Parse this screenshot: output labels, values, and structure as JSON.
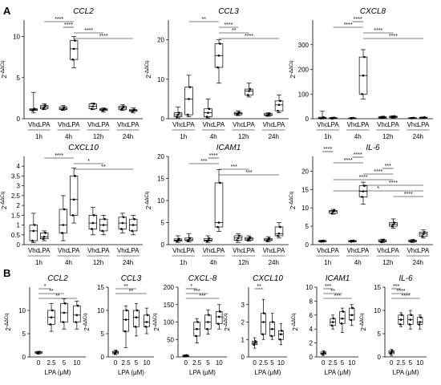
{
  "panels": [
    {
      "label": "A"
    },
    {
      "label": "B"
    }
  ],
  "y_label": {
    "base": "2",
    "sup": "-ΔΔCq"
  },
  "chart_data": [
    {
      "type": "box",
      "panel": "A",
      "title": "CCL2",
      "ylim": [
        0,
        12
      ],
      "yticks": [
        0,
        5,
        10
      ],
      "groups": [
        "Vhc",
        "LPA",
        "Vhc",
        "LPA",
        "Vhc",
        "LPA",
        "Vhc",
        "LPA"
      ],
      "time_labels": [
        "1h",
        "4h",
        "12h",
        "24h"
      ],
      "boxes": [
        {
          "q1": 1.0,
          "med": 1.1,
          "q3": 1.2,
          "min": 0.7,
          "max": 3.2
        },
        {
          "q1": 1.2,
          "med": 1.4,
          "q3": 1.6,
          "min": 1.1,
          "max": 1.8
        },
        {
          "q1": 1.1,
          "med": 1.2,
          "q3": 1.4,
          "min": 1.0,
          "max": 1.6
        },
        {
          "q1": 7.2,
          "med": 8.5,
          "q3": 9.5,
          "min": 6.2,
          "max": 10.0
        },
        {
          "q1": 1.2,
          "med": 1.5,
          "q3": 1.8,
          "min": 1.1,
          "max": 1.9
        },
        {
          "q1": 1.0,
          "med": 1.1,
          "q3": 1.2,
          "min": 0.8,
          "max": 1.3
        },
        {
          "q1": 1.1,
          "med": 1.3,
          "q3": 1.5,
          "min": 1.0,
          "max": 1.7
        },
        {
          "q1": 0.9,
          "med": 1.0,
          "q3": 1.1,
          "min": 0.7,
          "max": 1.3
        }
      ],
      "sig": [
        {
          "a": 1,
          "b": 3,
          "label": "****"
        },
        {
          "a": 2,
          "b": 3,
          "label": "****"
        },
        {
          "a": 3,
          "b": 5,
          "label": "****"
        },
        {
          "a": 3,
          "b": 7,
          "label": "****"
        }
      ]
    },
    {
      "type": "box",
      "panel": "A",
      "title": "CCL3",
      "ylim": [
        0,
        25
      ],
      "yticks": [
        0,
        10,
        20
      ],
      "groups": [
        "Vhc",
        "LPA",
        "Vhc",
        "LPA",
        "Vhc",
        "LPA",
        "Vhc",
        "LPA"
      ],
      "time_labels": [
        "1h",
        "4h",
        "12h",
        "24h"
      ],
      "boxes": [
        {
          "q1": 0.5,
          "med": 1.0,
          "q3": 1.5,
          "min": 0.2,
          "max": 3.0
        },
        {
          "q1": 1.0,
          "med": 5.0,
          "q3": 8.0,
          "min": 0.5,
          "max": 11.0
        },
        {
          "q1": 0.5,
          "med": 1.5,
          "q3": 2.5,
          "min": 0.2,
          "max": 5.0
        },
        {
          "q1": 13.0,
          "med": 16.0,
          "q3": 19.0,
          "min": 9.0,
          "max": 20.0
        },
        {
          "q1": 1.0,
          "med": 1.3,
          "q3": 1.6,
          "min": 0.8,
          "max": 2.0
        },
        {
          "q1": 6.0,
          "med": 7.0,
          "q3": 7.5,
          "min": 5.5,
          "max": 9.0
        },
        {
          "q1": 0.8,
          "med": 1.0,
          "q3": 1.3,
          "min": 0.6,
          "max": 1.5
        },
        {
          "q1": 2.0,
          "med": 3.5,
          "q3": 4.5,
          "min": 1.5,
          "max": 6.0
        }
      ],
      "sig": [
        {
          "a": 1,
          "b": 3,
          "label": "**"
        },
        {
          "a": 3,
          "b": 4,
          "label": "****"
        },
        {
          "a": 3,
          "b": 5,
          "label": "**"
        },
        {
          "a": 3,
          "b": 7,
          "label": "****"
        }
      ]
    },
    {
      "type": "box",
      "panel": "A",
      "title": "CXCL8",
      "ylim": [
        0,
        400
      ],
      "yticks": [
        0,
        100,
        200,
        300
      ],
      "groups": [
        "Vhc",
        "LPA",
        "Vhc",
        "LPA",
        "Vhc",
        "LPA",
        "Vhc",
        "LPA"
      ],
      "time_labels": [
        "1h",
        "4h",
        "12h",
        "24h"
      ],
      "boxes": [
        {
          "q1": 1,
          "med": 3,
          "q3": 6,
          "min": 0,
          "max": 30
        },
        {
          "q1": 1,
          "med": 2,
          "q3": 4,
          "min": 0,
          "max": 6
        },
        {
          "q1": 1,
          "med": 2,
          "q3": 3,
          "min": 0,
          "max": 5
        },
        {
          "q1": 100,
          "med": 175,
          "q3": 250,
          "min": 80,
          "max": 280
        },
        {
          "q1": 3,
          "med": 5,
          "q3": 8,
          "min": 2,
          "max": 10
        },
        {
          "q1": 5,
          "med": 7,
          "q3": 10,
          "min": 3,
          "max": 12
        },
        {
          "q1": 2,
          "med": 3,
          "q3": 4,
          "min": 1,
          "max": 5
        },
        {
          "q1": 3,
          "med": 4,
          "q3": 6,
          "min": 2,
          "max": 7
        }
      ],
      "sig": [
        {
          "a": 2,
          "b": 3,
          "label": "****"
        },
        {
          "a": 1,
          "b": 3,
          "label": "****"
        },
        {
          "a": 3,
          "b": 5,
          "label": "****"
        },
        {
          "a": 3,
          "b": 7,
          "label": "****"
        }
      ]
    },
    {
      "type": "box",
      "panel": "A",
      "title": "CXCL10",
      "ylim": [
        0,
        4.5
      ],
      "yticks": [
        0,
        0.5,
        1,
        1.5,
        2,
        2.5,
        3,
        3.5,
        4
      ],
      "groups": [
        "Vhc",
        "LPA",
        "Vhc",
        "LPA",
        "Vhc",
        "LPA",
        "Vhc",
        "LPA"
      ],
      "time_labels": [
        "1h",
        "4h",
        "12h",
        "24h"
      ],
      "boxes": [
        {
          "q1": 0.2,
          "med": 0.7,
          "q3": 1.0,
          "min": 0.1,
          "max": 1.6
        },
        {
          "q1": 0.3,
          "med": 0.4,
          "q3": 0.6,
          "min": 0.2,
          "max": 0.7
        },
        {
          "q1": 0.6,
          "med": 1.0,
          "q3": 1.8,
          "min": 0.2,
          "max": 2.5
        },
        {
          "q1": 1.5,
          "med": 2.3,
          "q3": 3.5,
          "min": 1.1,
          "max": 3.9
        },
        {
          "q1": 0.8,
          "med": 1.1,
          "q3": 1.5,
          "min": 0.5,
          "max": 1.9
        },
        {
          "q1": 0.7,
          "med": 1.0,
          "q3": 1.3,
          "min": 0.5,
          "max": 1.5
        },
        {
          "q1": 0.8,
          "med": 1.1,
          "q3": 1.4,
          "min": 0.6,
          "max": 1.6
        },
        {
          "q1": 0.7,
          "med": 1.0,
          "q3": 1.3,
          "min": 0.5,
          "max": 1.5
        }
      ],
      "sig": [
        {
          "a": 1,
          "b": 3,
          "label": "****"
        },
        {
          "a": 3,
          "b": 5,
          "label": "*"
        },
        {
          "a": 3,
          "b": 7,
          "label": "**"
        }
      ]
    },
    {
      "type": "box",
      "panel": "A",
      "title": "ICAM1",
      "ylim": [
        0,
        20
      ],
      "yticks": [
        0,
        5,
        10,
        15,
        20
      ],
      "groups": [
        "Vhc",
        "LPA",
        "Vhc",
        "LPA",
        "Vhc",
        "LPA",
        "Vhc",
        "LPA"
      ],
      "time_labels": [
        "1h",
        "4h",
        "12h",
        "24h"
      ],
      "boxes": [
        {
          "q1": 0.8,
          "med": 1.0,
          "q3": 1.3,
          "min": 0.5,
          "max": 2.0
        },
        {
          "q1": 0.9,
          "med": 1.1,
          "q3": 1.5,
          "min": 0.6,
          "max": 2.5
        },
        {
          "q1": 0.8,
          "med": 1.0,
          "q3": 1.4,
          "min": 0.5,
          "max": 2.0
        },
        {
          "q1": 4.0,
          "med": 5.0,
          "q3": 14.0,
          "min": 3.0,
          "max": 17.0
        },
        {
          "q1": 1.0,
          "med": 1.5,
          "q3": 2.0,
          "min": 0.5,
          "max": 2.5
        },
        {
          "q1": 1.0,
          "med": 1.3,
          "q3": 1.6,
          "min": 0.8,
          "max": 2.0
        },
        {
          "q1": 0.9,
          "med": 1.1,
          "q3": 1.4,
          "min": 0.6,
          "max": 1.8
        },
        {
          "q1": 2.0,
          "med": 2.5,
          "q3": 4.0,
          "min": 1.5,
          "max": 5.0
        }
      ],
      "sig": [
        {
          "a": 2,
          "b": 3,
          "label": "****"
        },
        {
          "a": 1,
          "b": 3,
          "label": "***"
        },
        {
          "a": 3,
          "b": 5,
          "label": "***"
        },
        {
          "a": 3,
          "b": 7,
          "label": "***"
        }
      ]
    },
    {
      "type": "box",
      "panel": "A",
      "title": "IL-6",
      "ylim": [
        0,
        24
      ],
      "yticks": [
        0,
        5,
        10,
        15,
        20
      ],
      "groups": [
        "Vhc",
        "LPA",
        "Vhc",
        "LPA",
        "Vhc",
        "LPA",
        "Vhc",
        "LPA"
      ],
      "time_labels": [
        "1h",
        "4h",
        "12h",
        "24h"
      ],
      "boxes": [
        {
          "q1": 0.8,
          "med": 1.0,
          "q3": 1.1,
          "min": 0.7,
          "max": 1.2
        },
        {
          "q1": 8.5,
          "med": 9.0,
          "q3": 9.3,
          "min": 8.3,
          "max": 9.6
        },
        {
          "q1": 0.8,
          "med": 1.0,
          "q3": 1.1,
          "min": 0.7,
          "max": 1.2
        },
        {
          "q1": 13.0,
          "med": 14.5,
          "q3": 16.0,
          "min": 11.0,
          "max": 17.0
        },
        {
          "q1": 0.8,
          "med": 1.0,
          "q3": 1.3,
          "min": 0.5,
          "max": 1.5
        },
        {
          "q1": 5.0,
          "med": 5.5,
          "q3": 6.0,
          "min": 4.5,
          "max": 7.0
        },
        {
          "q1": 0.8,
          "med": 1.0,
          "q3": 1.2,
          "min": 0.6,
          "max": 1.4
        },
        {
          "q1": 2.3,
          "med": 2.9,
          "q3": 3.4,
          "min": 1.8,
          "max": 4.0
        }
      ],
      "sig": [
        {
          "a": 0,
          "b": 1,
          "label": "****"
        },
        {
          "a": 2,
          "b": 3,
          "label": "****"
        },
        {
          "a": 1,
          "b": 3,
          "label": "****"
        },
        {
          "a": 4,
          "b": 5,
          "label": "***"
        },
        {
          "a": 3,
          "b": 5,
          "label": "****"
        },
        {
          "a": 1,
          "b": 5,
          "label": "****"
        },
        {
          "a": 3,
          "b": 7,
          "label": "****"
        },
        {
          "a": 1,
          "b": 7,
          "label": "*"
        },
        {
          "a": 5,
          "b": 7,
          "label": "****"
        }
      ]
    },
    {
      "type": "box",
      "panel": "B",
      "title": "CCL2",
      "ylim": [
        0,
        15
      ],
      "yticks": [
        0,
        5,
        10
      ],
      "categories": [
        "0",
        "2.5",
        "5",
        "10"
      ],
      "xlabel": "LPA (μM)",
      "boxes": [
        {
          "q1": 0.8,
          "med": 1.0,
          "q3": 1.1,
          "min": 0.6,
          "max": 1.2
        },
        {
          "q1": 7.0,
          "med": 8.5,
          "q3": 10.0,
          "min": 5.5,
          "max": 11.5
        },
        {
          "q1": 7.5,
          "med": 9.5,
          "q3": 11.5,
          "min": 6.0,
          "max": 12.5
        },
        {
          "q1": 7.5,
          "med": 9.0,
          "q3": 11.0,
          "min": 6.0,
          "max": 12.0
        }
      ],
      "sig": [
        {
          "a": 0,
          "b": 1,
          "label": "*"
        },
        {
          "a": 0,
          "b": 2,
          "label": "**"
        },
        {
          "a": 0,
          "b": 3,
          "label": "**"
        }
      ]
    },
    {
      "type": "box",
      "panel": "B",
      "title": "CCL3",
      "ylim": [
        0,
        15
      ],
      "yticks": [
        0,
        5,
        10,
        15
      ],
      "categories": [
        "0",
        "2.5",
        "5",
        "10"
      ],
      "xlabel": "LPA (μM)",
      "boxes": [
        {
          "q1": 0.7,
          "med": 1.0,
          "q3": 1.2,
          "min": 0.5,
          "max": 1.5
        },
        {
          "q1": 5.5,
          "med": 8.0,
          "q3": 10.0,
          "min": 2.0,
          "max": 11.0
        },
        {
          "q1": 6.5,
          "med": 8.5,
          "q3": 10.0,
          "min": 4.5,
          "max": 11.5
        },
        {
          "q1": 6.5,
          "med": 7.5,
          "q3": 9.0,
          "min": 5.0,
          "max": 10.5
        }
      ],
      "sig": [
        {
          "a": 0,
          "b": 2,
          "label": "**"
        },
        {
          "a": 0,
          "b": 3,
          "label": "**"
        }
      ]
    },
    {
      "type": "box",
      "panel": "B",
      "title": "CXCL-8",
      "ylim": [
        0,
        200
      ],
      "yticks": [
        0,
        50,
        100,
        150,
        200
      ],
      "categories": [
        "0",
        "2.5",
        "5",
        "10"
      ],
      "xlabel": "LPA (μM)",
      "boxes": [
        {
          "q1": 2,
          "med": 3,
          "q3": 5,
          "min": 1,
          "max": 6
        },
        {
          "q1": 60,
          "med": 80,
          "q3": 100,
          "min": 40,
          "max": 110
        },
        {
          "q1": 80,
          "med": 100,
          "q3": 120,
          "min": 65,
          "max": 135
        },
        {
          "q1": 95,
          "med": 115,
          "q3": 130,
          "min": 80,
          "max": 150
        }
      ],
      "sig": [
        {
          "a": 0,
          "b": 1,
          "label": "*"
        },
        {
          "a": 0,
          "b": 2,
          "label": "***"
        },
        {
          "a": 0,
          "b": 3,
          "label": "***"
        }
      ]
    },
    {
      "type": "box",
      "panel": "B",
      "title": "CXCL10",
      "ylim": [
        0,
        4
      ],
      "yticks": [
        0,
        1,
        2,
        3
      ],
      "categories": [
        "0",
        "2.5",
        "5",
        "10"
      ],
      "xlabel": "LPA (μM)",
      "boxes": [
        {
          "q1": 0.7,
          "med": 0.8,
          "q3": 0.9,
          "min": 0.5,
          "max": 1.1
        },
        {
          "q1": 1.3,
          "med": 2.0,
          "q3": 2.5,
          "min": 1.0,
          "max": 3.3
        },
        {
          "q1": 1.2,
          "med": 1.6,
          "q3": 2.0,
          "min": 1.0,
          "max": 2.5
        },
        {
          "q1": 1.0,
          "med": 1.3,
          "q3": 1.5,
          "min": 0.7,
          "max": 1.9
        }
      ],
      "sig": [
        {
          "a": 0,
          "b": 1,
          "label": "**"
        }
      ]
    },
    {
      "type": "box",
      "panel": "B",
      "title": "ICAM1",
      "ylim": [
        0,
        10
      ],
      "yticks": [
        0,
        2,
        4,
        6,
        8,
        10
      ],
      "categories": [
        "0",
        "2.5",
        "5",
        "10"
      ],
      "xlabel": "LPA (μM)",
      "boxes": [
        {
          "q1": 0.4,
          "med": 0.5,
          "q3": 0.7,
          "min": 0.2,
          "max": 0.9
        },
        {
          "q1": 4.5,
          "med": 5.0,
          "q3": 5.5,
          "min": 4.0,
          "max": 6.0
        },
        {
          "q1": 4.8,
          "med": 5.5,
          "q3": 6.5,
          "min": 3.5,
          "max": 7.0
        },
        {
          "q1": 5.3,
          "med": 6.0,
          "q3": 7.0,
          "min": 4.5,
          "max": 7.5
        }
      ],
      "sig": [
        {
          "a": 0,
          "b": 1,
          "label": "***"
        },
        {
          "a": 0,
          "b": 2,
          "label": "**"
        },
        {
          "a": 0,
          "b": 3,
          "label": "***"
        }
      ]
    },
    {
      "type": "box",
      "panel": "B",
      "title": "IL-6",
      "ylim": [
        0,
        15
      ],
      "yticks": [
        0,
        5,
        10,
        15
      ],
      "categories": [
        "0",
        "2.5",
        "5",
        "10"
      ],
      "xlabel": "LPA (μM)",
      "boxes": [
        {
          "q1": 0.7,
          "med": 1.0,
          "q3": 1.3,
          "min": 0.3,
          "max": 1.6
        },
        {
          "q1": 7.0,
          "med": 8.0,
          "q3": 9.0,
          "min": 6.5,
          "max": 9.5
        },
        {
          "q1": 7.0,
          "med": 8.0,
          "q3": 9.0,
          "min": 6.0,
          "max": 10.0
        },
        {
          "q1": 7.0,
          "med": 7.5,
          "q3": 8.5,
          "min": 6.0,
          "max": 9.0
        }
      ],
      "sig": [
        {
          "a": 0,
          "b": 1,
          "label": "***"
        },
        {
          "a": 0,
          "b": 2,
          "label": "****"
        },
        {
          "a": 0,
          "b": 3,
          "label": "****"
        }
      ]
    }
  ]
}
